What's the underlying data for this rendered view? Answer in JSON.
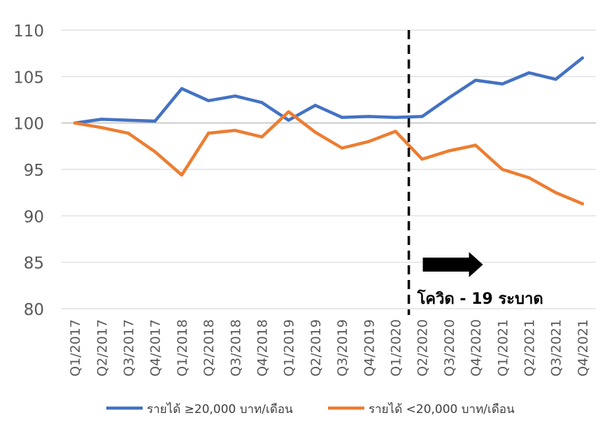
{
  "chart_data": {
    "type": "line",
    "categories": [
      "Q1/2017",
      "Q2/2017",
      "Q3/2017",
      "Q4/2017",
      "Q1/2018",
      "Q2/2018",
      "Q3/2018",
      "Q4/2018",
      "Q1/2019",
      "Q2/2019",
      "Q3/2019",
      "Q4/2019",
      "Q1/2020",
      "Q2/2020",
      "Q3/2020",
      "Q4/2020",
      "Q1/2021",
      "Q2/2021",
      "Q3/2021",
      "Q4/2021"
    ],
    "series": [
      {
        "name": "รายได้ ≥20,000 บาท/เดือน",
        "color": "#4472C4",
        "values": [
          100,
          100.4,
          100.3,
          100.2,
          103.7,
          102.4,
          102.9,
          102.2,
          100.3,
          101.9,
          100.6,
          100.7,
          100.6,
          100.7,
          102.7,
          104.6,
          104.2,
          105.4,
          104.7,
          107.0
        ]
      },
      {
        "name": "รายได้ <20,000 บาท/เดือน",
        "color": "#ED7D31",
        "values": [
          100,
          99.5,
          98.9,
          96.9,
          94.4,
          98.9,
          99.2,
          98.5,
          101.2,
          99.0,
          97.3,
          98.0,
          99.1,
          96.1,
          97.0,
          97.6,
          95.0,
          94.1,
          92.5,
          91.3
        ]
      }
    ],
    "yticks": [
      "80",
      "85",
      "90",
      "95",
      "100",
      "105",
      "110"
    ],
    "ylim": [
      80,
      110
    ],
    "grid": true,
    "legend": "bottom",
    "annotation": {
      "text": "โควิด - 19 ระบาด",
      "after_category": "Q1/2020"
    }
  }
}
